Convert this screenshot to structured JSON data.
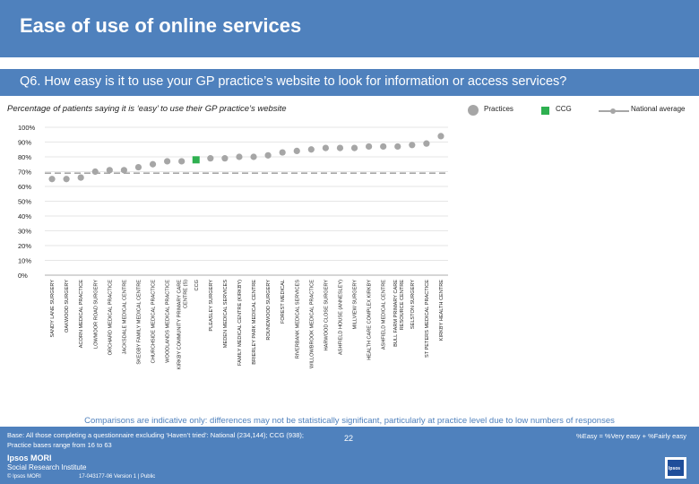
{
  "header": {
    "title": "Ease of use of online services",
    "question": "Q6. How easy is it to use your GP practice’s website to look for information or access services?"
  },
  "subtitle": "Percentage of patients saying it is ‘easy’ to use their GP practice’s website",
  "legend": {
    "practices": "Practices",
    "ccg": "CCG",
    "national": "National average"
  },
  "colors": {
    "practice": "#a6a6a6",
    "ccg": "#2eb050",
    "national": "#a6a6a6",
    "brand": "#4f81bd"
  },
  "chart_data": {
    "type": "bar",
    "title": "Percentage of patients saying it is ‘easy’ to use their GP practice’s website",
    "ylim": [
      0,
      100
    ],
    "yticks": [
      "0%",
      "10%",
      "20%",
      "30%",
      "40%",
      "50%",
      "60%",
      "70%",
      "80%",
      "90%",
      "100%"
    ],
    "national_average": 69,
    "categories": [
      "SANDY LANE SURGERY",
      "OAKWOOD SURGERY",
      "ACORN MEDICAL PRACTICE",
      "LOWMOOR ROAD SURGERY",
      "ORCHARD MEDICAL PRACTICE",
      "JACKSDALE MEDICAL CENTRE",
      "SKEGBY FAMILY MEDICAL CENTRE",
      "CHURCHSIDE MEDICAL PRACTICE",
      "WOODLANDS MEDICAL PRACTICE",
      "KIRKBY COMMUNITY PRIMARY CARE CENTRE (S)",
      "CCG",
      "PLEASLEY SURGERY",
      "MEDEN MEDICAL SERVICES",
      "FAMILY MEDICAL CENTRE (KIRKBY)",
      "BRIERLEY PARK MEDICAL CENTRE",
      "ROUNDWOOD SURGERY",
      "FOREST MEDICAL",
      "RIVERBANK MEDICAL SERVICES",
      "WILLOWBROOK MEDICAL PRACTICE",
      "HARWOOD CLOSE SURGERY",
      "ASHFIELD HOUSE (ANNESLEY)",
      "MILLVIEW SURGERY",
      "HEALTH CARE COMPLEX KIRKBY",
      "ASHFIELD MEDICAL CENTRE",
      "BULL FARM PRIMARY CARE RESOURCE CENTRE",
      "SELSTON SURGERY",
      "ST PETERS MEDICAL PRACTICE",
      "KIRKBY HEALTH CENTRE"
    ],
    "values": [
      65,
      65,
      66,
      70,
      71,
      71,
      73,
      75,
      77,
      77,
      78,
      79,
      79,
      80,
      80,
      81,
      83,
      84,
      85,
      86,
      86,
      86,
      87,
      87,
      87,
      88,
      89,
      94
    ],
    "ccg_index": 10
  },
  "note": "Comparisons are indicative only: differences may not be statistically significant, particularly at practice level due to low numbers of responses",
  "footer": {
    "base_line1": "Base: All those completing a questionnaire excluding ‘Haven’t tried’: National (234,144); CCG (938);",
    "base_line2": "Practice bases range from 16 to 63",
    "definition": "%Easy = %Very easy + %Fairly easy",
    "page_number": "22",
    "logo_line1": "Ipsos MORI",
    "logo_line2": "Social Research Institute",
    "copyright": "© Ipsos MORI",
    "job": "17-043177-06 Version 1 | Public",
    "ipsos": "Ipsos"
  }
}
